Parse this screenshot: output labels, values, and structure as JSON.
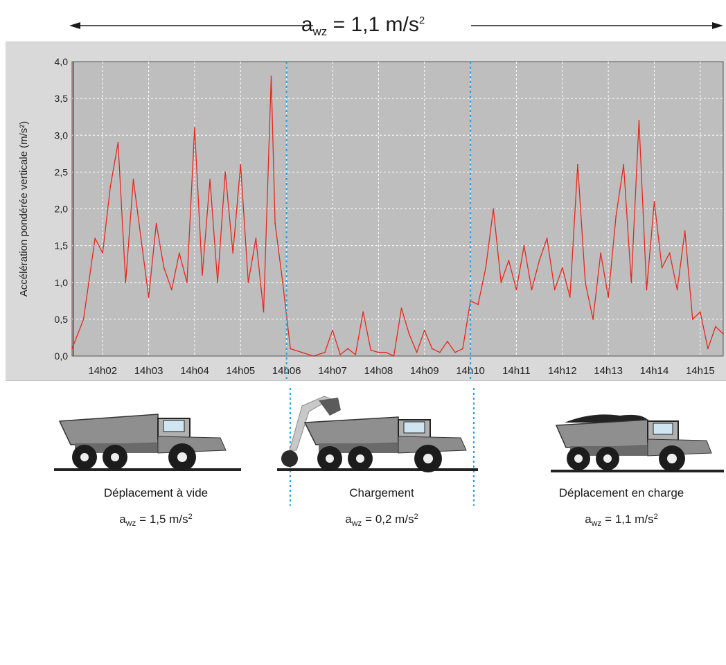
{
  "overall": {
    "symbol": "a",
    "subscript": "wz",
    "equals_value": "= 1,1 m/s",
    "superscript": "2"
  },
  "chart_data": {
    "type": "line",
    "title": "",
    "xlabel": "",
    "ylabel": "Accélération pondérée verticale (m/s²)",
    "ylim": [
      0,
      4.0
    ],
    "xlim": [
      "14h01:20",
      "14h15:30"
    ],
    "yticks": [
      "0,0",
      "0,5",
      "1,0",
      "1,5",
      "2,0",
      "2,5",
      "3,0",
      "3,5",
      "4,0"
    ],
    "xticks": [
      "14h02",
      "14h03",
      "14h04",
      "14h05",
      "14h06",
      "14h07",
      "14h08",
      "14h09",
      "14h10",
      "14h11",
      "14h12",
      "14h13",
      "14h14",
      "14h15"
    ],
    "grid": true,
    "line_color": "#e8261c",
    "phase_dividers": [
      "14h06",
      "14h10"
    ],
    "series": [
      {
        "x": [
          "14h01:20",
          "14h01:35",
          "14h01:50",
          "14h02:00",
          "14h02:10",
          "14h02:20",
          "14h02:30",
          "14h02:40",
          "14h02:50",
          "14h03:00",
          "14h03:10",
          "14h03:20",
          "14h03:30",
          "14h03:40",
          "14h03:50",
          "14h04:00",
          "14h04:10",
          "14h04:20",
          "14h04:30",
          "14h04:40",
          "14h04:50",
          "14h05:00",
          "14h05:10",
          "14h05:20",
          "14h05:30",
          "14h05:40",
          "14h05:45",
          "14h05:55",
          "14h06:05",
          "14h06:20",
          "14h06:35",
          "14h06:50",
          "14h07:00",
          "14h07:10",
          "14h07:20",
          "14h07:30",
          "14h07:40",
          "14h07:50",
          "14h08:00",
          "14h08:10",
          "14h08:20",
          "14h08:30",
          "14h08:40",
          "14h08:50",
          "14h09:00",
          "14h09:10",
          "14h09:20",
          "14h09:30",
          "14h09:40",
          "14h09:50",
          "14h10:00",
          "14h10:10",
          "14h10:20",
          "14h10:30",
          "14h10:40",
          "14h10:50",
          "14h11:00",
          "14h11:10",
          "14h11:20",
          "14h11:30",
          "14h11:40",
          "14h11:50",
          "14h12:00",
          "14h12:10",
          "14h12:20",
          "14h12:30",
          "14h12:40",
          "14h12:50",
          "14h13:00",
          "14h13:10",
          "14h13:20",
          "14h13:30",
          "14h13:40",
          "14h13:50",
          "14h14:00",
          "14h14:10",
          "14h14:20",
          "14h14:30",
          "14h14:40",
          "14h14:50",
          "14h15:00",
          "14h15:10",
          "14h15:20",
          "14h15:30"
        ],
        "y": [
          0.1,
          0.5,
          1.6,
          1.4,
          2.3,
          2.9,
          1.0,
          2.4,
          1.6,
          0.8,
          1.8,
          1.2,
          0.9,
          1.4,
          1.0,
          3.1,
          1.1,
          2.4,
          1.0,
          2.5,
          1.4,
          2.6,
          1.0,
          1.6,
          0.6,
          3.8,
          1.8,
          1.0,
          0.1,
          0.05,
          0.0,
          0.05,
          0.35,
          0.02,
          0.1,
          0.02,
          0.6,
          0.08,
          0.05,
          0.05,
          0.0,
          0.65,
          0.3,
          0.05,
          0.35,
          0.1,
          0.05,
          0.2,
          0.05,
          0.1,
          0.75,
          0.7,
          1.2,
          2.0,
          1.0,
          1.3,
          0.9,
          1.5,
          0.9,
          1.3,
          1.6,
          0.9,
          1.2,
          0.8,
          2.6,
          1.0,
          0.5,
          1.4,
          0.8,
          1.9,
          2.6,
          1.0,
          3.2,
          0.9,
          2.1,
          1.2,
          1.4,
          0.9,
          1.7,
          0.5,
          0.6,
          0.1,
          0.4,
          0.3
        ]
      }
    ]
  },
  "phases": [
    {
      "label": "Déplacement à vide",
      "symbol": "a",
      "subscript": "wz",
      "value": "= 1,5 m/s",
      "superscript": "2"
    },
    {
      "label": "Chargement",
      "symbol": "a",
      "subscript": "wz",
      "value": "= 0,2 m/s",
      "superscript": "2"
    },
    {
      "label": "Déplacement en charge",
      "symbol": "a",
      "subscript": "wz",
      "value": "= 1,1 m/s",
      "superscript": "2"
    }
  ]
}
